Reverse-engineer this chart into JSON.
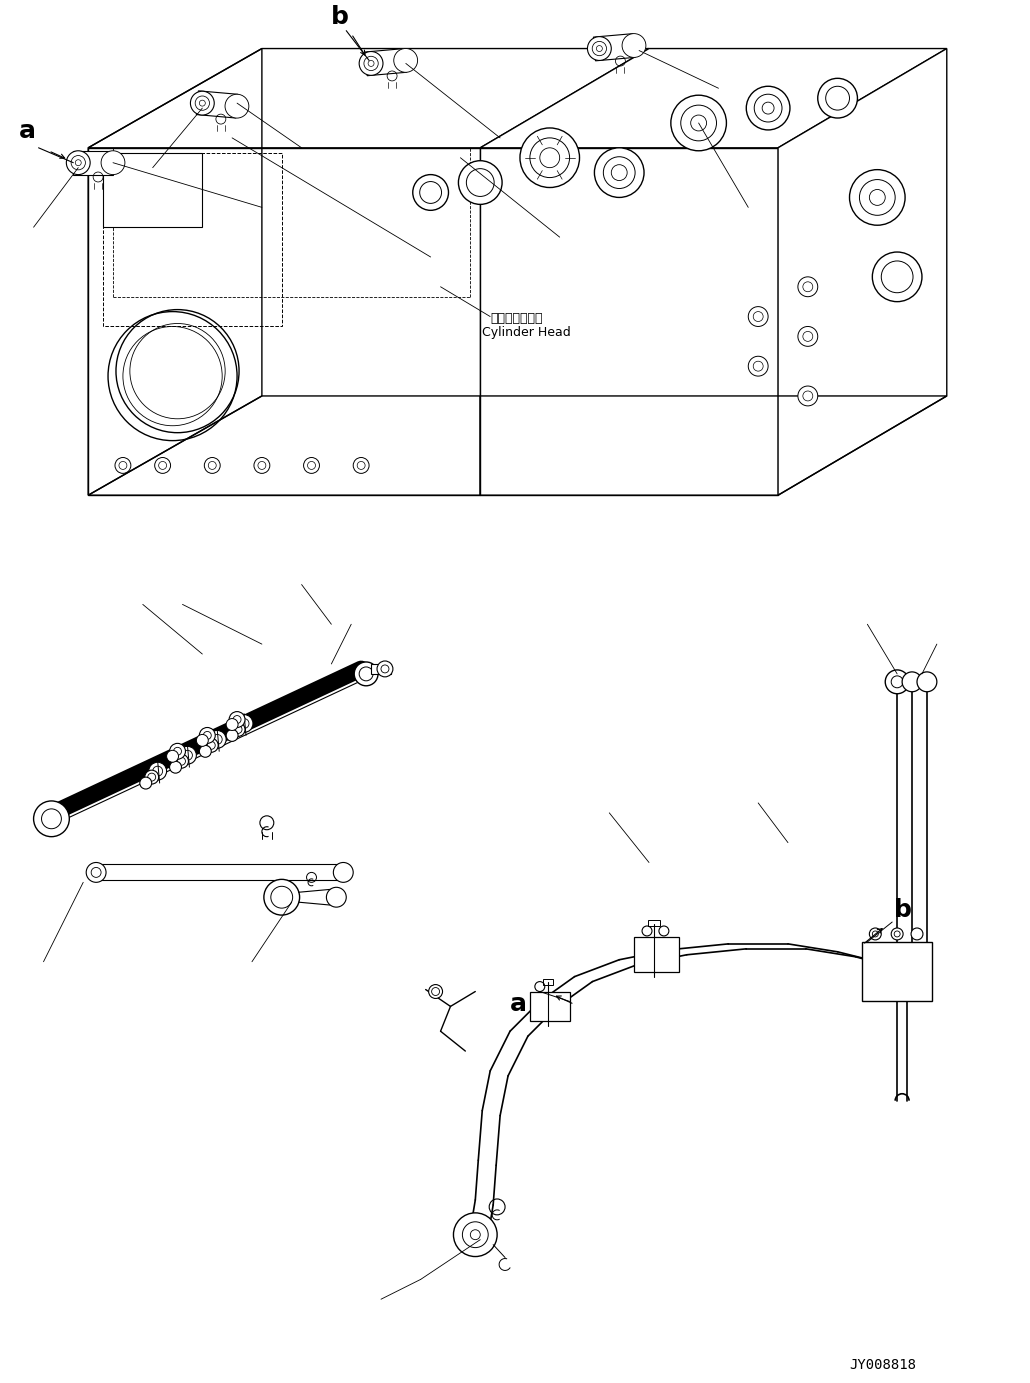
{
  "background_color": "#ffffff",
  "line_color": "#000000",
  "text_color": "#000000",
  "figsize": [
    10.3,
    13.83
  ],
  "dpi": 100,
  "label_a_top": "a",
  "label_b_top": "b",
  "label_a_bottom": "a",
  "label_b_bottom": "b",
  "cylinder_head_jp": "シリンダヘッド",
  "cylinder_head_en": "Cylinder Head",
  "part_number": "JY008818"
}
